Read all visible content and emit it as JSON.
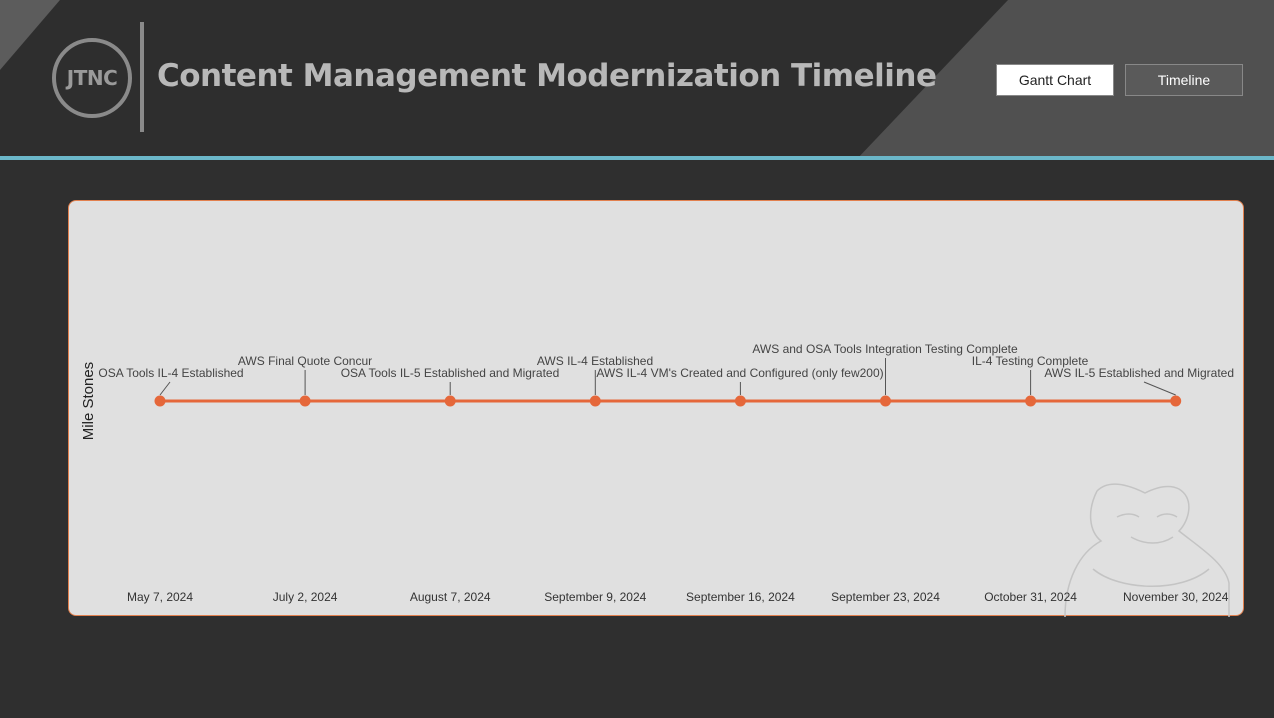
{
  "header": {
    "logo_text": "JTNC",
    "title": "Content Management Modernization Timeline"
  },
  "nav": {
    "gantt_label": "Gantt Chart",
    "timeline_label": "Timeline"
  },
  "colors": {
    "accent": "#e5673a",
    "divider": "#6bb7c9",
    "panel": "#e0e0e0"
  },
  "chart_data": {
    "type": "timeline",
    "ylabel": "Mile Stones",
    "dates": [
      "May 7, 2024",
      "July 2, 2024",
      "August 7, 2024",
      "September 9, 2024",
      "September 16, 2024",
      "September 23, 2024",
      "October 31, 2024",
      "November 30, 2024"
    ],
    "milestones": [
      "OSA Tools IL-4 Established",
      "AWS Final Quote Concur",
      "OSA Tools IL-5 Established and Migrated",
      "AWS IL-4 Established",
      "AWS IL-4 VM's Created and Configured (only few200)",
      "AWS and OSA Tools Integration Testing Complete",
      "IL-4 Testing Complete",
      "AWS IL-5 Established and Migrated"
    ],
    "grid": false,
    "legend": "none"
  }
}
